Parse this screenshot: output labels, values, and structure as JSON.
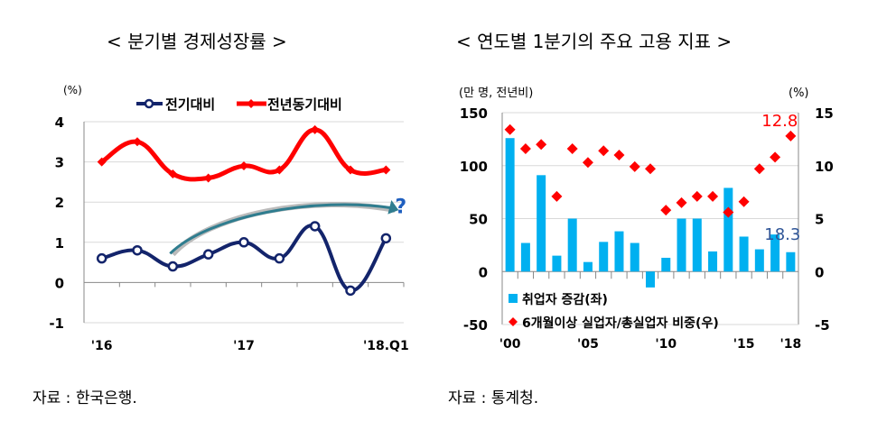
{
  "chart_data": [
    {
      "type": "line",
      "title": "< 분기별 경제성장률 >",
      "ylabel": "(%)",
      "ylim": [
        -1,
        4
      ],
      "yticks": [
        -1,
        0,
        1,
        2,
        3,
        4
      ],
      "categories": [
        "16.Q1",
        "16.Q2",
        "16.Q3",
        "16.Q4",
        "17.Q1",
        "17.Q2",
        "17.Q3",
        "17.Q4",
        "18.Q1"
      ],
      "xtick_labels": [
        {
          "i": 0,
          "label": "'16"
        },
        {
          "i": 4,
          "label": "'17"
        },
        {
          "i": 8,
          "label": "'18.Q1"
        }
      ],
      "series": [
        {
          "name": "전기대비",
          "color": "#13246b",
          "values": [
            0.6,
            0.8,
            0.4,
            0.7,
            1.0,
            0.6,
            1.4,
            -0.2,
            1.1
          ]
        },
        {
          "name": "전년동기대비",
          "color": "#ff0000",
          "values": [
            3.0,
            3.5,
            2.7,
            2.6,
            2.9,
            2.8,
            3.8,
            2.8,
            2.8
          ]
        }
      ],
      "annotation": "?",
      "source": "자료 : 한국은행."
    },
    {
      "type": "bar",
      "title": "< 연도별 1분기의 주요 고용 지표 >",
      "ylabel": "(만 명, 전년비)",
      "ylabel_right": "(%)",
      "ylim": [
        -50,
        150
      ],
      "yticks": [
        -50,
        0,
        50,
        100,
        150
      ],
      "ylim_right": [
        -5,
        15
      ],
      "yticks_right": [
        -5,
        0,
        5,
        10,
        15
      ],
      "categories": [
        "2000",
        "2001",
        "2002",
        "2003",
        "2004",
        "2005",
        "2006",
        "2007",
        "2008",
        "2009",
        "2010",
        "2011",
        "2012",
        "2013",
        "2014",
        "2015",
        "2016",
        "2017",
        "2018"
      ],
      "xtick_labels": [
        {
          "i": 0,
          "label": "'00"
        },
        {
          "i": 5,
          "label": "'05"
        },
        {
          "i": 10,
          "label": "'10"
        },
        {
          "i": 15,
          "label": "'15"
        },
        {
          "i": 18,
          "label": "'18"
        }
      ],
      "series": [
        {
          "name": "취업자 증감(좌)",
          "color": "#00b0f0",
          "values": [
            126,
            27,
            91,
            15,
            50,
            9,
            28,
            38,
            27,
            -15,
            13,
            50,
            50,
            19,
            79,
            33,
            21,
            35,
            18.3
          ]
        },
        {
          "name": "6개월이상 실업자/총실업자 비중(우)",
          "color": "#ff0000",
          "values": [
            13.4,
            11.6,
            12.0,
            7.1,
            11.6,
            10.3,
            11.4,
            11.0,
            9.9,
            9.7,
            5.8,
            6.5,
            7.1,
            7.1,
            5.6,
            6.6,
            9.7,
            10.8,
            12.8
          ]
        }
      ],
      "data_labels": {
        "bar_last": "18.3",
        "diamond_last": "12.8"
      },
      "source": "자료 : 통계청."
    }
  ]
}
